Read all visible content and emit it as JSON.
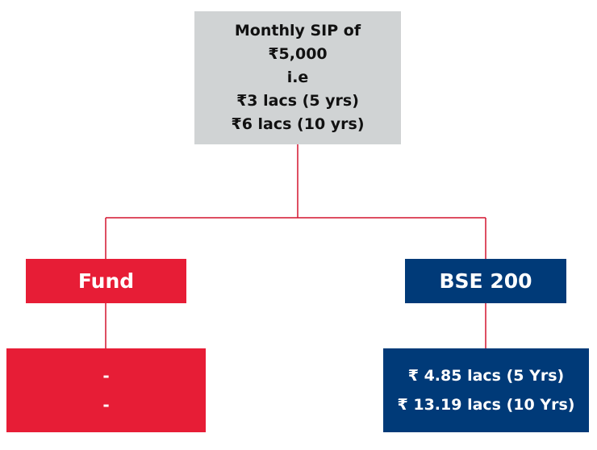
{
  "sip_box": {
    "lines": [
      "Monthly SIP of",
      "₹5,000",
      "i.e",
      "₹3 lacs (5 yrs)",
      "₹6 lacs (10 yrs)"
    ]
  },
  "fund": {
    "label": "Fund",
    "results": [
      "-",
      "-"
    ]
  },
  "bse": {
    "label": "BSE 200",
    "results": [
      "₹ 4.85 lacs (5 Yrs)",
      "₹ 13.19 lacs (10 Yrs)"
    ]
  },
  "colors": {
    "fund": "#e71d36",
    "bse": "#003a78",
    "sip_box": "#d0d3d4",
    "connector": "#d3142f"
  }
}
